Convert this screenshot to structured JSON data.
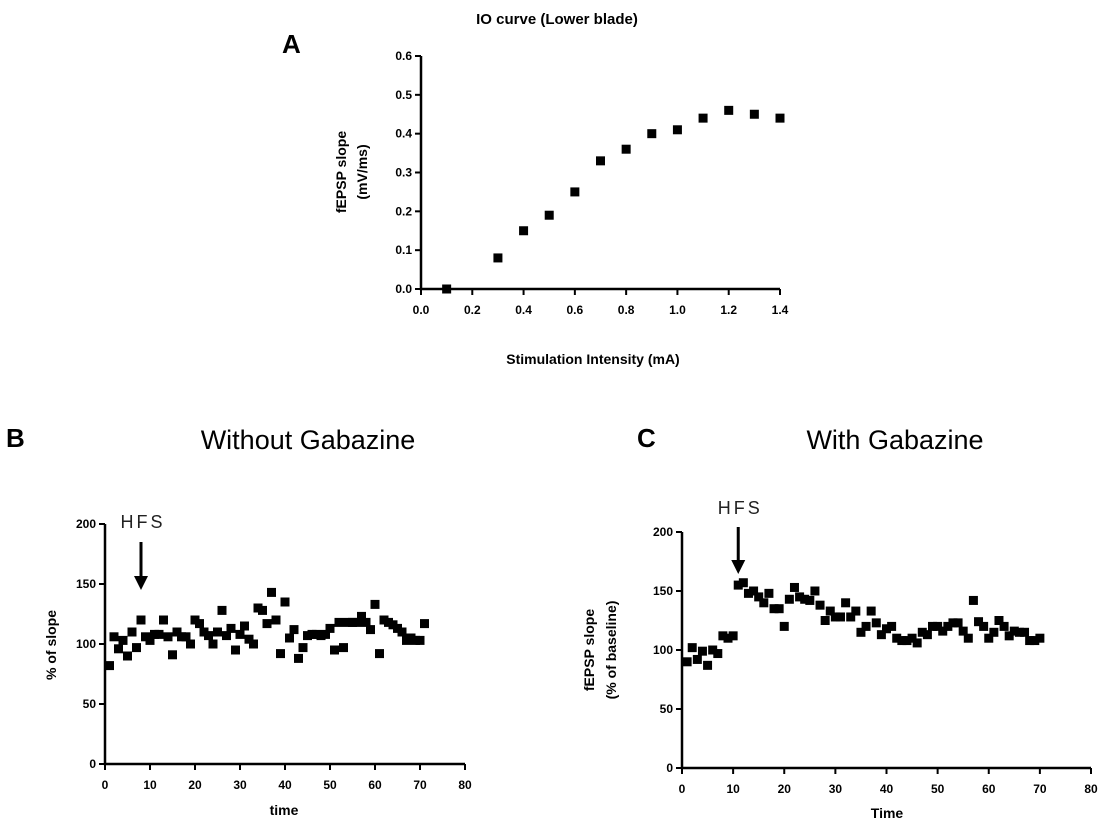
{
  "chart_data": [
    {
      "id": "A",
      "panel_label": "A",
      "type": "scatter",
      "title": "IO curve (Lower blade)",
      "xlabel": "Stimulation Intensity (mA)",
      "ylabel_lines": [
        "fEPSP slope",
        "(mV/ms)"
      ],
      "xlim": [
        0.0,
        1.4
      ],
      "ylim": [
        0.0,
        0.6
      ],
      "x_ticks": [
        0.0,
        0.2,
        0.4,
        0.6,
        0.8,
        1.0,
        1.2,
        1.4
      ],
      "x_tick_labels": [
        "0.0",
        "0.2",
        "0.4",
        "0.6",
        "0.8",
        "1.0",
        "1.2",
        "1.4"
      ],
      "y_ticks": [
        0.0,
        0.1,
        0.2,
        0.3,
        0.4,
        0.5,
        0.6
      ],
      "y_tick_labels": [
        "0.0",
        "0.1",
        "0.2",
        "0.3",
        "0.4",
        "0.5",
        "0.6"
      ],
      "grid": false,
      "series": [
        {
          "x": [
            0.1,
            0.3,
            0.4,
            0.5,
            0.6,
            0.7,
            0.8,
            0.9,
            1.0,
            1.1,
            1.2,
            1.3,
            1.4
          ],
          "y": [
            0.0,
            0.08,
            0.15,
            0.19,
            0.25,
            0.33,
            0.36,
            0.4,
            0.41,
            0.44,
            0.46,
            0.45,
            0.44
          ]
        }
      ]
    },
    {
      "id": "B",
      "panel_label": "B",
      "type": "scatter",
      "title": "Without Gabazine",
      "xlabel": "time",
      "ylabel_lines": [
        "% of slope"
      ],
      "xlim": [
        0,
        80
      ],
      "ylim": [
        0,
        200
      ],
      "x_ticks": [
        0,
        10,
        20,
        30,
        40,
        50,
        60,
        70,
        80
      ],
      "x_tick_labels": [
        "0",
        "10",
        "20",
        "30",
        "40",
        "50",
        "60",
        "70",
        "80"
      ],
      "y_ticks": [
        0,
        50,
        100,
        150,
        200
      ],
      "y_tick_labels": [
        "0",
        "50",
        "100",
        "150",
        "200"
      ],
      "grid": false,
      "annotation": {
        "text": "HFS",
        "x": 8
      },
      "series": [
        {
          "x": [
            1,
            2,
            3,
            4,
            5,
            6,
            7,
            8,
            9,
            10,
            11,
            12,
            13,
            14,
            15,
            16,
            17,
            18,
            19,
            20,
            21,
            22,
            23,
            24,
            25,
            26,
            27,
            28,
            29,
            30,
            31,
            32,
            33,
            34,
            35,
            36,
            37,
            38,
            39,
            40,
            41,
            42,
            43,
            44,
            45,
            46,
            47,
            48,
            49,
            50,
            51,
            52,
            53,
            54,
            55,
            56,
            57,
            58,
            59,
            60,
            61,
            62,
            63,
            64,
            65,
            66,
            67,
            68,
            69,
            70,
            71
          ],
          "y": [
            82,
            106,
            96,
            103,
            90,
            110,
            97,
            120,
            106,
            103,
            108,
            108,
            120,
            106,
            91,
            110,
            106,
            106,
            100,
            120,
            117,
            110,
            107,
            100,
            110,
            128,
            107,
            113,
            95,
            108,
            115,
            104,
            100,
            130,
            128,
            117,
            143,
            120,
            92,
            135,
            105,
            112,
            88,
            97,
            107,
            108,
            108,
            107,
            108,
            113,
            95,
            118,
            97,
            118,
            118,
            118,
            123,
            118,
            112,
            133,
            92,
            120,
            118,
            116,
            113,
            110,
            103,
            105,
            103,
            103,
            117
          ]
        }
      ]
    },
    {
      "id": "C",
      "panel_label": "C",
      "type": "scatter",
      "title": "With Gabazine",
      "xlabel": "Time",
      "ylabel_lines": [
        "fEPSP slope",
        "(% of baseline)"
      ],
      "xlim": [
        0,
        80
      ],
      "ylim": [
        0,
        200
      ],
      "x_ticks": [
        0,
        10,
        20,
        30,
        40,
        50,
        60,
        70,
        80
      ],
      "x_tick_labels": [
        "0",
        "10",
        "20",
        "30",
        "40",
        "50",
        "60",
        "70",
        "80"
      ],
      "y_ticks": [
        0,
        50,
        100,
        150,
        200
      ],
      "y_tick_labels": [
        "0",
        "50",
        "100",
        "150",
        "200"
      ],
      "grid": false,
      "annotation": {
        "text": "HFS",
        "x": 11
      },
      "series": [
        {
          "x": [
            1,
            2,
            3,
            4,
            5,
            6,
            7,
            8,
            9,
            10,
            11,
            12,
            13,
            14,
            15,
            16,
            17,
            18,
            19,
            20,
            21,
            22,
            23,
            24,
            25,
            26,
            27,
            28,
            29,
            30,
            31,
            32,
            33,
            34,
            35,
            36,
            37,
            38,
            39,
            40,
            41,
            42,
            43,
            44,
            45,
            46,
            47,
            48,
            49,
            50,
            51,
            52,
            53,
            54,
            55,
            56,
            57,
            58,
            59,
            60,
            61,
            62,
            63,
            64,
            65,
            66,
            67,
            68,
            69,
            70
          ],
          "y": [
            90,
            102,
            92,
            99,
            87,
            100,
            97,
            112,
            110,
            112,
            155,
            157,
            148,
            150,
            145,
            140,
            148,
            135,
            135,
            120,
            143,
            153,
            145,
            143,
            142,
            150,
            138,
            125,
            133,
            128,
            128,
            140,
            128,
            133,
            115,
            120,
            133,
            123,
            113,
            118,
            120,
            110,
            108,
            108,
            110,
            106,
            115,
            113,
            120,
            120,
            116,
            120,
            123,
            123,
            116,
            110,
            142,
            124,
            120,
            110,
            115,
            125,
            120,
            112,
            116,
            115,
            115,
            108,
            108,
            110
          ]
        }
      ]
    }
  ]
}
